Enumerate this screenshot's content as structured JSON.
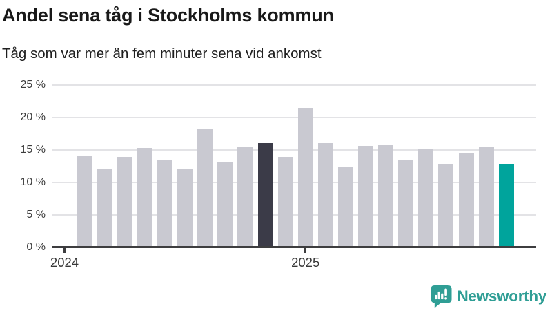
{
  "header": {
    "title": "Andel sena tåg i Stockholms kommun",
    "subtitle": "Tåg som var mer än fem minuter sena vid ankomst"
  },
  "chart_data": {
    "type": "bar",
    "title": "Andel sena tåg i Stockholms kommun",
    "subtitle": "Tåg som var mer än fem minuter sena vid ankomst",
    "unit": "%",
    "values": [
      14.1,
      12.0,
      13.9,
      15.3,
      13.5,
      12.0,
      18.3,
      13.2,
      15.4,
      16.0,
      13.9,
      21.5,
      16.0,
      12.4,
      15.6,
      15.7,
      13.5,
      15.1,
      12.7,
      14.6,
      15.5,
      12.8
    ],
    "highlight": {
      "dark_index": 9,
      "accent_index": 21
    },
    "y_ticks": [
      "0 %",
      "5 %",
      "10 %",
      "15 %",
      "20 %",
      "25 %"
    ],
    "y_tick_values": [
      0,
      5,
      10,
      15,
      20,
      25
    ],
    "ylim": [
      0,
      25
    ],
    "x_ticks": [
      {
        "label": "2024",
        "slot": 0
      },
      {
        "label": "2025",
        "slot": 12
      }
    ],
    "first_bar_slot": 1,
    "grid": "horizontal-only",
    "legend": "none",
    "colors": {
      "bar": "#c9c9d1",
      "bar_dark": "#3b3b48",
      "bar_accent": "#00a49c",
      "gridline": "#e3e3e6",
      "axis": "#3d3d3f",
      "tick_text": "#3c3c3c"
    }
  },
  "branding": {
    "logo_text": "Newsworthy",
    "logo_color": "#2f9e95",
    "logo_icon": "newsworthy-speech-bubble-bar-chart-icon"
  }
}
